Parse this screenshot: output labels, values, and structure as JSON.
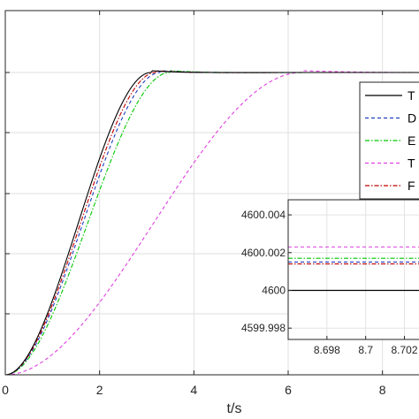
{
  "chart_data": {
    "type": "line",
    "xlabel": "t/s",
    "ylabel": "",
    "xlim": [
      0,
      9
    ],
    "x_ticks": [
      "0",
      "2",
      "4",
      "6",
      "8"
    ],
    "grid": true,
    "legend_placement": "right",
    "series": [
      {
        "name": "T",
        "color": "#000000",
        "dash": "solid",
        "rise_time": 3.1,
        "inset_value": 4600.0
      },
      {
        "name": "D",
        "color": "#1f3fbf",
        "dash": "dashed",
        "rise_time": 3.3,
        "inset_value": 4600.0015
      },
      {
        "name": "E",
        "color": "#00c800",
        "dash": "dashdot",
        "rise_time": 3.5,
        "inset_value": 4600.0017
      },
      {
        "name": "T",
        "color": "#e040e0",
        "dash": "dashed",
        "rise_time": 6.3,
        "inset_value": 4600.0023
      },
      {
        "name": "F",
        "color": "#c00000",
        "dash": "dashdot",
        "rise_time": 3.2,
        "inset_value": 4600.0014
      }
    ],
    "inset": {
      "xlim": [
        8.696,
        8.7033
      ],
      "ylim": [
        4599.9974,
        4600.0048
      ],
      "x_ticks": [
        "8.698",
        "8.7",
        "8.702"
      ],
      "y_ticks": [
        "4600.004",
        "4600.002",
        "4600",
        "4599.998"
      ]
    }
  }
}
